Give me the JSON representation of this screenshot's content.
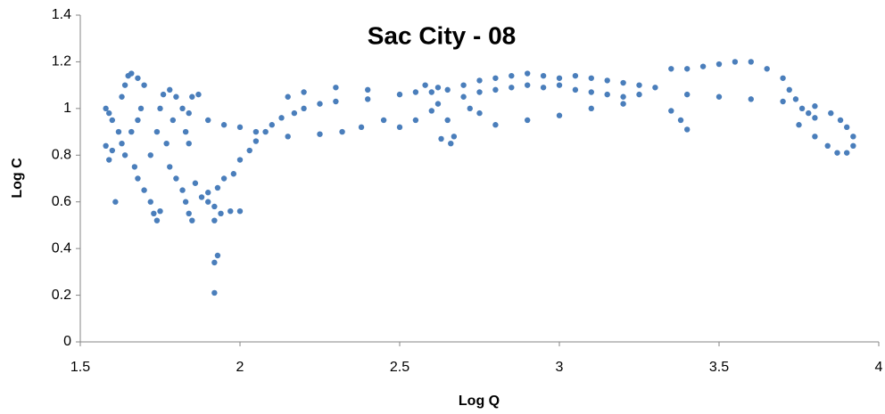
{
  "chart_data": {
    "type": "scatter",
    "title": "Sac City - 08",
    "x_label": "Log Q",
    "y_label": "Log C",
    "color": "#4a7ebb",
    "xlim": [
      1.5,
      4
    ],
    "xticks": [
      1.5,
      2,
      2.5,
      3,
      3.5,
      4
    ],
    "ylim": [
      0,
      1.4
    ],
    "yticks": [
      0,
      0.2,
      0.4,
      0.6,
      0.8,
      1,
      1.2,
      1.4
    ],
    "x": [
      1.58,
      1.59,
      1.6,
      1.58,
      1.6,
      1.59,
      1.61,
      1.62,
      1.63,
      1.64,
      1.63,
      1.64,
      1.65,
      1.66,
      1.68,
      1.7,
      1.69,
      1.68,
      1.66,
      1.67,
      1.68,
      1.7,
      1.72,
      1.73,
      1.74,
      1.75,
      1.72,
      1.74,
      1.75,
      1.76,
      1.78,
      1.8,
      1.79,
      1.77,
      1.78,
      1.8,
      1.82,
      1.83,
      1.84,
      1.85,
      1.84,
      1.85,
      1.87,
      1.82,
      1.83,
      1.84,
      1.86,
      1.88,
      1.9,
      1.92,
      1.93,
      1.92,
      1.92,
      1.94,
      1.97,
      2.0,
      1.92,
      1.9,
      1.93,
      1.95,
      1.98,
      2.0,
      2.03,
      2.05,
      2.08,
      2.1,
      2.13,
      2.17,
      2.2,
      2.25,
      2.3,
      2.4,
      2.5,
      2.55,
      2.6,
      2.62,
      2.65,
      2.67,
      2.66,
      2.15,
      2.2,
      2.3,
      2.4,
      1.9,
      1.95,
      2.0,
      2.05,
      2.15,
      2.25,
      2.32,
      2.38,
      2.45,
      2.5,
      2.55,
      2.6,
      2.63,
      2.65,
      2.7,
      2.75,
      2.8,
      2.85,
      2.9,
      2.95,
      3.0,
      3.05,
      3.1,
      3.15,
      3.2,
      3.25,
      3.3,
      2.7,
      2.75,
      2.8,
      2.85,
      2.9,
      2.95,
      3.0,
      3.05,
      3.1,
      3.15,
      3.2,
      3.25,
      2.72,
      2.75,
      2.8,
      2.9,
      3.0,
      3.1,
      3.2,
      3.35,
      3.38,
      3.4,
      3.35,
      3.4,
      3.45,
      3.5,
      3.55,
      3.6,
      3.65,
      3.7,
      3.72,
      3.74,
      3.76,
      3.78,
      3.8,
      3.75,
      3.85,
      3.88,
      3.9,
      3.92,
      3.92,
      3.9,
      3.87,
      3.84,
      3.8,
      3.4,
      3.5,
      3.6,
      3.7,
      3.8,
      2.58,
      2.62
    ],
    "values": [
      1.0,
      0.98,
      0.95,
      0.84,
      0.82,
      0.78,
      0.6,
      0.9,
      0.85,
      0.8,
      1.05,
      1.1,
      1.14,
      1.15,
      1.13,
      1.1,
      1.0,
      0.95,
      0.9,
      0.75,
      0.7,
      0.65,
      0.6,
      0.55,
      0.52,
      0.56,
      0.8,
      0.9,
      1.0,
      1.06,
      1.08,
      1.05,
      0.95,
      0.85,
      0.75,
      0.7,
      0.65,
      0.6,
      0.55,
      0.52,
      0.98,
      1.05,
      1.06,
      1.0,
      0.9,
      0.85,
      0.68,
      0.62,
      0.6,
      0.58,
      0.37,
      0.34,
      0.21,
      0.55,
      0.56,
      0.56,
      0.52,
      0.64,
      0.66,
      0.7,
      0.72,
      0.78,
      0.82,
      0.86,
      0.9,
      0.93,
      0.96,
      0.98,
      1.0,
      1.02,
      1.03,
      1.04,
      1.06,
      1.07,
      1.07,
      1.02,
      0.95,
      0.88,
      0.85,
      1.05,
      1.07,
      1.09,
      1.08,
      0.95,
      0.93,
      0.92,
      0.9,
      0.88,
      0.89,
      0.9,
      0.92,
      0.95,
      0.92,
      0.95,
      0.99,
      0.87,
      1.08,
      1.1,
      1.12,
      1.13,
      1.14,
      1.15,
      1.14,
      1.13,
      1.14,
      1.13,
      1.12,
      1.11,
      1.1,
      1.09,
      1.05,
      1.07,
      1.08,
      1.09,
      1.1,
      1.09,
      1.1,
      1.08,
      1.07,
      1.06,
      1.05,
      1.06,
      1.0,
      0.98,
      0.93,
      0.95,
      0.97,
      1.0,
      1.02,
      0.99,
      0.95,
      0.91,
      1.17,
      1.17,
      1.18,
      1.19,
      1.2,
      1.2,
      1.17,
      1.13,
      1.08,
      1.04,
      1.0,
      0.98,
      0.96,
      0.93,
      0.98,
      0.95,
      0.92,
      0.88,
      0.84,
      0.81,
      0.81,
      0.84,
      0.88,
      1.06,
      1.05,
      1.04,
      1.03,
      1.01,
      1.1,
      1.09
    ]
  }
}
